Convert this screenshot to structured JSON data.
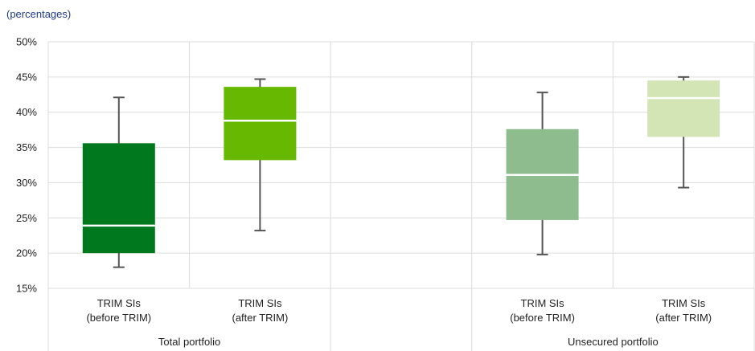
{
  "chart_data": {
    "type": "box",
    "subtitle": "(percentages)",
    "ylim": [
      15,
      50
    ],
    "yticks": [
      15,
      20,
      25,
      30,
      35,
      40,
      45,
      50
    ],
    "ytick_format": "{v}%",
    "grid": true,
    "groups": [
      "Total portfolio",
      "Unsecured portfolio"
    ],
    "boxes": [
      {
        "label": [
          "TRIM SIs",
          "(before TRIM)"
        ],
        "group": 0,
        "color": "#00781e",
        "whisker_low": 18.0,
        "q1": 20.0,
        "median": 23.9,
        "q3": 35.6,
        "whisker_high": 42.1
      },
      {
        "label": [
          "TRIM SIs",
          "(after TRIM)"
        ],
        "group": 0,
        "color": "#66b800",
        "whisker_low": 23.2,
        "q1": 33.2,
        "median": 38.8,
        "q3": 43.6,
        "whisker_high": 44.7
      },
      {
        "label": [
          "TRIM SIs",
          "(before TRIM)"
        ],
        "group": 1,
        "color": "#8fbc8f",
        "whisker_low": 19.8,
        "q1": 24.7,
        "median": 31.1,
        "q3": 37.6,
        "whisker_high": 42.8
      },
      {
        "label": [
          "TRIM SIs",
          "(after TRIM)"
        ],
        "group": 1,
        "color": "#d3e4b5",
        "whisker_low": 29.3,
        "q1": 36.5,
        "median": 42.0,
        "q3": 44.5,
        "whisker_high": 45.0
      }
    ]
  }
}
